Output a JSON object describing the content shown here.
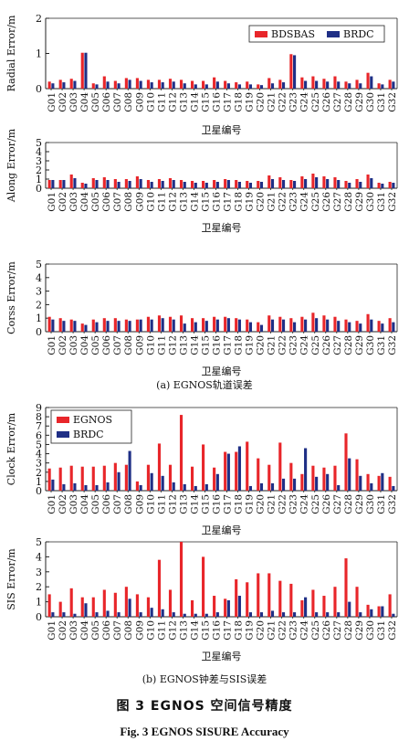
{
  "colors": {
    "series1": "#e8262a",
    "series2": "#1f2f86",
    "axis": "#222222"
  },
  "captions": {
    "sub_a": "(a) EGNOS轨道误差",
    "sub_b": "(b) EGNOS钟差与SIS误差",
    "figure_cn": "图 3   EGNOS 空间信号精度",
    "figure_en": "Fig. 3   EGNOS SISURE Accuracy"
  },
  "chart_data": [
    {
      "type": "bar",
      "ylabel": "Radial Error/m",
      "xlabel": "卫星编号",
      "ylim": [
        0,
        2
      ],
      "yticks": [
        0,
        1,
        2
      ],
      "legend_placement": "top-right",
      "categories": [
        "G01",
        "G02",
        "G03",
        "G04",
        "G05",
        "G06",
        "G07",
        "G08",
        "G09",
        "G10",
        "G11",
        "G12",
        "G13",
        "G14",
        "G15",
        "G16",
        "G17",
        "G18",
        "G19",
        "G20",
        "G21",
        "G22",
        "G23",
        "G24",
        "G25",
        "G26",
        "G27",
        "G28",
        "G29",
        "G30",
        "G31",
        "G32"
      ],
      "series": [
        {
          "name": "BDSBAS",
          "values": [
            0.2,
            0.25,
            0.28,
            1.02,
            0.15,
            0.35,
            0.22,
            0.3,
            0.3,
            0.25,
            0.25,
            0.28,
            0.25,
            0.22,
            0.22,
            0.32,
            0.22,
            0.18,
            0.2,
            0.12,
            0.3,
            0.25,
            0.98,
            0.32,
            0.35,
            0.28,
            0.35,
            0.2,
            0.25,
            0.45,
            0.15,
            0.25
          ]
        },
        {
          "name": "BRDC",
          "values": [
            0.15,
            0.18,
            0.22,
            1.02,
            0.12,
            0.2,
            0.15,
            0.25,
            0.22,
            0.18,
            0.18,
            0.2,
            0.15,
            0.12,
            0.12,
            0.2,
            0.15,
            0.12,
            0.12,
            0.1,
            0.15,
            0.18,
            0.95,
            0.22,
            0.22,
            0.2,
            0.2,
            0.15,
            0.15,
            0.35,
            0.12,
            0.2
          ]
        }
      ]
    },
    {
      "type": "bar",
      "ylabel": "Along Error/m",
      "xlabel": "卫星编号",
      "ylim": [
        0,
        5
      ],
      "yticks": [
        0,
        1,
        2,
        3,
        4,
        5
      ],
      "categories": [
        "G01",
        "G02",
        "G03",
        "G04",
        "G05",
        "G06",
        "G07",
        "G08",
        "G09",
        "G10",
        "G11",
        "G12",
        "G13",
        "G14",
        "G15",
        "G16",
        "G17",
        "G18",
        "G19",
        "G20",
        "G21",
        "G22",
        "G23",
        "G24",
        "G25",
        "G26",
        "G27",
        "G28",
        "G29",
        "G30",
        "G31",
        "G32"
      ],
      "series": [
        {
          "name": "BDSBAS",
          "values": [
            0.9,
            0.9,
            1.5,
            0.6,
            1.1,
            1.2,
            1.0,
            1.0,
            1.3,
            0.9,
            1.0,
            1.1,
            0.9,
            0.8,
            0.8,
            0.9,
            1.0,
            0.9,
            0.8,
            0.8,
            1.4,
            1.2,
            0.9,
            1.3,
            1.6,
            1.3,
            1.2,
            0.8,
            1.0,
            1.5,
            0.6,
            0.7
          ]
        },
        {
          "name": "BRDC",
          "values": [
            0.9,
            0.9,
            1.1,
            0.5,
            0.9,
            0.9,
            0.7,
            0.8,
            1.0,
            0.7,
            0.8,
            0.9,
            0.7,
            0.6,
            0.6,
            0.7,
            0.9,
            0.7,
            0.6,
            0.7,
            1.0,
            0.9,
            0.8,
            1.0,
            1.2,
            1.0,
            0.9,
            0.6,
            0.7,
            1.1,
            0.5,
            0.6
          ]
        }
      ]
    },
    {
      "type": "bar",
      "ylabel": "Corss Error/m",
      "xlabel": "卫星编号",
      "ylim": [
        0,
        5
      ],
      "yticks": [
        0,
        1,
        2,
        3,
        4,
        5
      ],
      "categories": [
        "G01",
        "G02",
        "G03",
        "G04",
        "G05",
        "G06",
        "G07",
        "G08",
        "G09",
        "G10",
        "G11",
        "G12",
        "G13",
        "G14",
        "G15",
        "G16",
        "G17",
        "G18",
        "G19",
        "G20",
        "G21",
        "G22",
        "G23",
        "G24",
        "G25",
        "G26",
        "G27",
        "G28",
        "G29",
        "G30",
        "G31",
        "G32"
      ],
      "series": [
        {
          "name": "BDSBAS",
          "values": [
            1.1,
            1.0,
            0.9,
            0.6,
            0.9,
            1.0,
            1.0,
            0.9,
            0.9,
            1.1,
            1.2,
            1.1,
            1.2,
            1.0,
            1.0,
            1.1,
            1.1,
            1.0,
            0.9,
            0.7,
            1.2,
            1.1,
            1.0,
            1.1,
            1.4,
            1.2,
            1.1,
            0.9,
            0.8,
            1.3,
            0.8,
            1.0
          ]
        },
        {
          "name": "BRDC",
          "values": [
            0.9,
            0.8,
            0.8,
            0.5,
            0.7,
            0.8,
            0.8,
            0.8,
            0.9,
            0.9,
            1.0,
            0.9,
            0.6,
            0.7,
            0.8,
            0.9,
            1.0,
            0.9,
            0.7,
            0.5,
            0.9,
            0.9,
            0.7,
            0.9,
            1.0,
            0.9,
            0.8,
            0.7,
            0.6,
            0.9,
            0.6,
            0.7
          ]
        }
      ]
    },
    {
      "type": "bar",
      "ylabel": "Clock Error/m",
      "xlabel": "卫星编号",
      "ylim": [
        0,
        9
      ],
      "yticks": [
        0,
        1,
        2,
        3,
        4,
        5,
        6,
        7,
        8,
        9
      ],
      "legend_placement": "top-left",
      "categories": [
        "G01",
        "G02",
        "G03",
        "G04",
        "G05",
        "G06",
        "G07",
        "G08",
        "G09",
        "G10",
        "G11",
        "G12",
        "G13",
        "G14",
        "G15",
        "G16",
        "G17",
        "G18",
        "G19",
        "G20",
        "G21",
        "G22",
        "G23",
        "G24",
        "G25",
        "G26",
        "G27",
        "G28",
        "G29",
        "G30",
        "G31",
        "G32"
      ],
      "series": [
        {
          "name": "EGNOS",
          "values": [
            2.4,
            2.5,
            2.7,
            2.6,
            2.6,
            2.7,
            3.0,
            2.8,
            1.0,
            2.8,
            5.1,
            2.8,
            8.2,
            2.6,
            5.0,
            2.5,
            4.2,
            4.2,
            5.3,
            3.5,
            2.8,
            5.2,
            3.0,
            1.8,
            2.7,
            2.5,
            2.7,
            6.2,
            3.4,
            1.8,
            1.6,
            1.5
          ]
        },
        {
          "name": "BRDC",
          "values": [
            1.2,
            0.7,
            0.8,
            0.6,
            0.6,
            0.9,
            2.0,
            4.3,
            0.6,
            1.9,
            1.6,
            0.9,
            0.7,
            0.5,
            0.7,
            1.8,
            4.0,
            4.8,
            0.5,
            0.8,
            0.8,
            1.3,
            1.3,
            4.6,
            1.5,
            1.8,
            0.6,
            3.5,
            1.6,
            0.8,
            1.9,
            0.5
          ]
        }
      ]
    },
    {
      "type": "bar",
      "ylabel": "SIS Error/m",
      "xlabel": "卫星编号",
      "ylim": [
        0,
        5
      ],
      "yticks": [
        0,
        1,
        2,
        3,
        4,
        5
      ],
      "categories": [
        "G01",
        "G02",
        "G03",
        "G04",
        "G05",
        "G06",
        "G07",
        "G08",
        "G09",
        "G10",
        "G11",
        "G12",
        "G13",
        "G14",
        "G15",
        "G16",
        "G17",
        "G18",
        "G19",
        "G20",
        "G21",
        "G22",
        "G23",
        "G24",
        "G25",
        "G26",
        "G27",
        "G28",
        "G29",
        "G30",
        "G31",
        "G32"
      ],
      "series": [
        {
          "name": "EGNOS",
          "values": [
            1.5,
            1.0,
            1.9,
            1.3,
            1.3,
            1.8,
            1.6,
            2.0,
            1.5,
            1.3,
            3.8,
            1.8,
            5.0,
            1.1,
            4.0,
            1.4,
            1.2,
            2.5,
            2.3,
            2.9,
            2.9,
            2.4,
            2.2,
            1.1,
            1.8,
            1.4,
            2.0,
            3.9,
            2.0,
            0.8,
            0.7,
            1.5
          ]
        },
        {
          "name": "BRDC",
          "values": [
            0.3,
            0.3,
            0.2,
            0.9,
            0.3,
            0.4,
            0.3,
            1.2,
            0.3,
            0.6,
            0.5,
            0.3,
            0.2,
            0.2,
            0.2,
            0.3,
            1.1,
            1.4,
            0.3,
            0.3,
            0.4,
            0.3,
            0.3,
            1.3,
            0.3,
            0.3,
            0.3,
            1.0,
            0.3,
            0.5,
            0.7,
            0.2
          ]
        }
      ]
    }
  ]
}
